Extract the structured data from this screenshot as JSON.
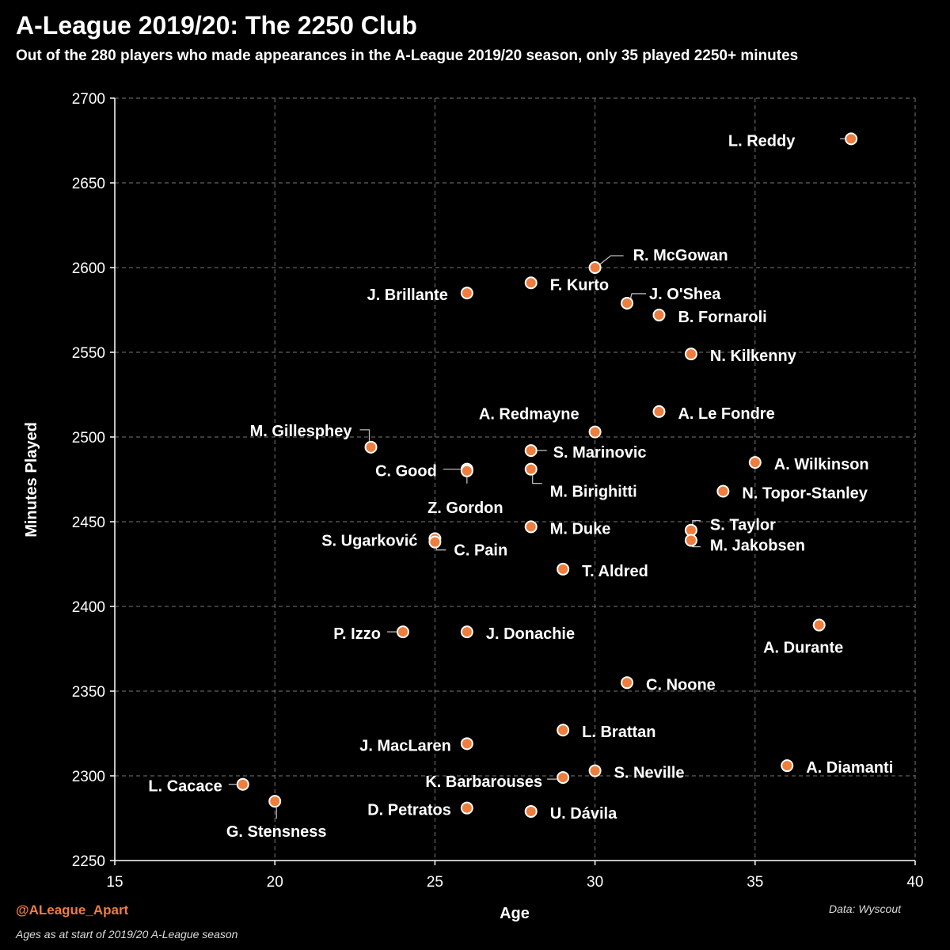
{
  "header": {
    "title": "A-League 2019/20: The 2250 Club",
    "subtitle": "Out of the 280 players who made appearances in the A-League 2019/20 season, only 35 played 2250+ minutes"
  },
  "footer": {
    "handle": "@ALeague_Apart",
    "note": "Ages as at start of 2019/20 A-League season",
    "source": "Data: Wyscout"
  },
  "colors": {
    "point": "#ef7d3c",
    "accent": "#ef7d3c",
    "grid": "#777777",
    "background": "#000000"
  },
  "chart_data": {
    "type": "scatter",
    "title": "A-League 2019/20: The 2250 Club",
    "xlabel": "Age",
    "ylabel": "Minutes Played",
    "xlim": [
      15,
      40
    ],
    "ylim": [
      2250,
      2700
    ],
    "xticks": [
      15,
      20,
      25,
      30,
      35,
      40
    ],
    "yticks": [
      2250,
      2300,
      2350,
      2400,
      2450,
      2500,
      2550,
      2600,
      2650,
      2700
    ],
    "grid": true,
    "points": [
      {
        "name": "L. Reddy",
        "x": 38,
        "y": 2676
      },
      {
        "name": "R. McGowan",
        "x": 30,
        "y": 2600
      },
      {
        "name": "F. Kurto",
        "x": 28,
        "y": 2591
      },
      {
        "name": "J. Brillante",
        "x": 26,
        "y": 2585
      },
      {
        "name": "J. O'Shea",
        "x": 31,
        "y": 2579
      },
      {
        "name": "B. Fornaroli",
        "x": 32,
        "y": 2572
      },
      {
        "name": "N. Kilkenny",
        "x": 33,
        "y": 2549
      },
      {
        "name": "A. Le Fondre",
        "x": 32,
        "y": 2515
      },
      {
        "name": "A. Redmayne",
        "x": 30,
        "y": 2503
      },
      {
        "name": "M. Gillesphey",
        "x": 23,
        "y": 2494
      },
      {
        "name": "S. Marinovic",
        "x": 28,
        "y": 2492
      },
      {
        "name": "A. Wilkinson",
        "x": 35,
        "y": 2485
      },
      {
        "name": "C. Good",
        "x": 26,
        "y": 2481
      },
      {
        "name": "M. Birighitti",
        "x": 28,
        "y": 2481
      },
      {
        "name": "Z. Gordon",
        "x": 26,
        "y": 2480
      },
      {
        "name": "N. Topor-Stanley",
        "x": 34,
        "y": 2468
      },
      {
        "name": "M. Duke",
        "x": 28,
        "y": 2447
      },
      {
        "name": "S. Taylor",
        "x": 33,
        "y": 2445
      },
      {
        "name": "S. Ugarković",
        "x": 25,
        "y": 2440
      },
      {
        "name": "M. Jakobsen",
        "x": 33,
        "y": 2439
      },
      {
        "name": "C. Pain",
        "x": 25,
        "y": 2438
      },
      {
        "name": "T. Aldred",
        "x": 29,
        "y": 2422
      },
      {
        "name": "A. Durante",
        "x": 37,
        "y": 2389
      },
      {
        "name": "P. Izzo",
        "x": 24,
        "y": 2385
      },
      {
        "name": "J. Donachie",
        "x": 26,
        "y": 2385
      },
      {
        "name": "C. Noone",
        "x": 31,
        "y": 2355
      },
      {
        "name": "L. Brattan",
        "x": 29,
        "y": 2327
      },
      {
        "name": "J. MacLaren",
        "x": 26,
        "y": 2319
      },
      {
        "name": "A. Diamanti",
        "x": 36,
        "y": 2306
      },
      {
        "name": "S. Neville",
        "x": 30,
        "y": 2303
      },
      {
        "name": "K. Barbarouses",
        "x": 29,
        "y": 2299
      },
      {
        "name": "L. Cacace",
        "x": 19,
        "y": 2295
      },
      {
        "name": "G. Stensness",
        "x": 20,
        "y": 2285
      },
      {
        "name": "D. Petratos",
        "x": 26,
        "y": 2281
      },
      {
        "name": "U. Dávila",
        "x": 28,
        "y": 2279
      }
    ]
  }
}
